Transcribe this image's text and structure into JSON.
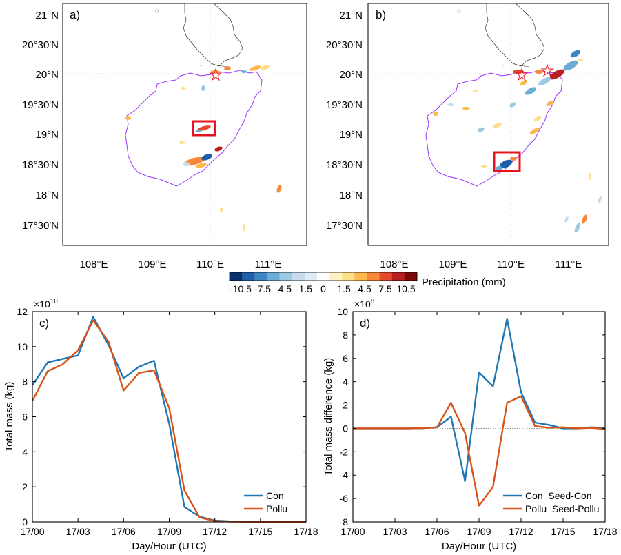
{
  "colors": {
    "series_a": "#1f77b4",
    "series_b": "#d95319",
    "coast": "#9933ff",
    "box": "#e6141e",
    "star": "#e6141e",
    "colorbar": [
      "#08306b",
      "#1f5ea8",
      "#3c86c2",
      "#6aaed6",
      "#9ecae1",
      "#c6dbef",
      "#deebf7",
      "#ffffff",
      "#fff3c4",
      "#fde08a",
      "#fdb84d",
      "#f5883a",
      "#e34a2a",
      "#b81f20",
      "#7a0a0a"
    ]
  },
  "map_a": {
    "panel_label": "a)",
    "lat_ticks": [
      "21°N",
      "20°30'N",
      "20°N",
      "19°30'N",
      "19°N",
      "18°30'N",
      "18°N",
      "17°30'N"
    ],
    "lon_ticks": [
      "108°E",
      "109°E",
      "110°E",
      "111°E"
    ]
  },
  "map_b": {
    "panel_label": "b)",
    "lat_ticks": [
      "21°N",
      "20°30'N",
      "20°N",
      "19°30'N",
      "19°N",
      "18°30'N",
      "18°N",
      "17°30'N"
    ],
    "lon_ticks": [
      "108°E",
      "109°E",
      "110°E",
      "111°E"
    ]
  },
  "colorbar": {
    "labels": [
      "-10.5",
      "-7.5",
      "-4.5",
      "-1.5",
      "0",
      "1.5",
      "4.5",
      "7.5",
      "10.5"
    ],
    "title": "Precipitation (mm)"
  },
  "chart_data": [
    {
      "type": "line",
      "panel_label": "c)",
      "title": "",
      "xlabel": "Day/Hour (UTC)",
      "ylabel": "Total mass (kg)",
      "exponent": "×10",
      "exponent_power": "10",
      "xlim": [
        0,
        18
      ],
      "ylim": [
        0,
        12
      ],
      "xticks": [
        0,
        3,
        6,
        9,
        12,
        15,
        18
      ],
      "xtick_labels": [
        "17/00",
        "17/03",
        "17/06",
        "17/09",
        "17/12",
        "17/15",
        "17/18"
      ],
      "yticks": [
        0,
        2,
        4,
        6,
        8,
        10,
        12
      ],
      "ytick_labels": [
        "0",
        "2",
        "4",
        "6",
        "8",
        "10",
        "12"
      ],
      "legend_position": "bottom-right",
      "x": [
        0,
        1,
        2,
        3,
        4,
        5,
        6,
        7,
        8,
        9,
        10,
        11,
        12,
        13,
        14,
        15,
        16,
        17,
        18
      ],
      "series": [
        {
          "name": "Con",
          "color": "#1f77b4",
          "values": [
            7.8,
            9.1,
            9.3,
            9.5,
            11.7,
            10.1,
            8.2,
            8.85,
            9.2,
            5.6,
            0.85,
            0.3,
            0.08,
            0.03,
            0.02,
            0.01,
            0.0,
            0.0,
            0.0
          ]
        },
        {
          "name": "Pollu",
          "color": "#d95319",
          "values": [
            6.9,
            8.6,
            9.0,
            9.8,
            11.5,
            10.3,
            7.5,
            8.5,
            8.65,
            6.5,
            1.8,
            0.25,
            0.05,
            0.02,
            0.01,
            0.0,
            0.0,
            0.0,
            0.0
          ]
        }
      ]
    },
    {
      "type": "line",
      "panel_label": "d)",
      "title": "",
      "xlabel": "Day/Hour (UTC)",
      "ylabel": "Total mass difference (kg)",
      "exponent": "×10",
      "exponent_power": "8",
      "xlim": [
        0,
        18
      ],
      "ylim": [
        -8,
        10
      ],
      "xticks": [
        0,
        3,
        6,
        9,
        12,
        15,
        18
      ],
      "xtick_labels": [
        "17/00",
        "17/03",
        "17/06",
        "17/09",
        "17/12",
        "17/15",
        "17/18"
      ],
      "yticks": [
        -8,
        -6,
        -4,
        -2,
        0,
        2,
        4,
        6,
        8,
        10
      ],
      "ytick_labels": [
        "-8",
        "-6",
        "-4",
        "-2",
        "0",
        "2",
        "4",
        "6",
        "8",
        "10"
      ],
      "zero_line": true,
      "legend_position": "bottom-right",
      "x": [
        0,
        1,
        2,
        3,
        4,
        5,
        6,
        7,
        8,
        9,
        10,
        11,
        12,
        13,
        14,
        15,
        16,
        17,
        18
      ],
      "series": [
        {
          "name": "Con_Seed-Con",
          "color": "#1f77b4",
          "values": [
            0,
            0,
            0,
            0,
            0,
            0.02,
            0.1,
            1.0,
            -4.5,
            4.8,
            3.6,
            9.4,
            3.1,
            0.5,
            0.3,
            0.0,
            0.0,
            0.1,
            0.05
          ]
        },
        {
          "name": "Pollu_Seed-Pollu",
          "color": "#d95319",
          "values": [
            0,
            0,
            0,
            0,
            0,
            0.02,
            0.1,
            2.2,
            -0.4,
            -6.6,
            -5.0,
            2.2,
            2.75,
            0.2,
            0.05,
            0.1,
            0.0,
            0.05,
            -0.05
          ]
        }
      ]
    }
  ]
}
